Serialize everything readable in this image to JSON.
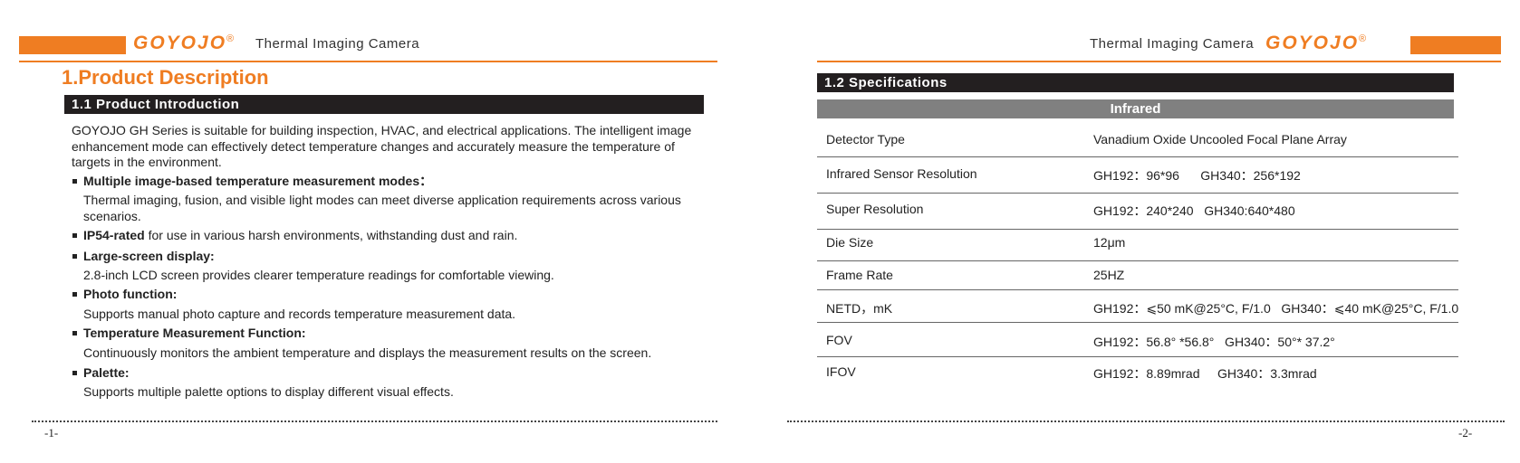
{
  "left": {
    "header": {
      "brand": "GOYOJO",
      "registered": "®",
      "title": "Thermal Imaging Camera"
    },
    "heading": "1.Product Description",
    "section": "1.1 Product Introduction",
    "intro": "GOYOJO GH Series is suitable for building inspection, HVAC, and electrical applications. The intelligent image enhancement mode can effectively detect temperature changes and accurately measure the temperature of targets in the environment.",
    "features": [
      {
        "title": "Multiple image-based temperature measurement modes：",
        "text": "Thermal imaging, fusion, and visible light modes can meet diverse application requirements across various scenarios."
      },
      {
        "title": "IP54-rated",
        "tail": " for use in various harsh environments, withstanding dust and rain."
      },
      {
        "title": "Large-screen display:",
        "text": "2.8-inch LCD screen provides clearer temperature readings for comfortable viewing."
      },
      {
        "title": "Photo function:",
        "text": "Supports manual photo capture and records temperature measurement data."
      },
      {
        "title": "Temperature Measurement Function:",
        "text": "Continuously monitors the ambient temperature and displays the measurement results on the screen."
      },
      {
        "title": "Palette:",
        "text": "Supports multiple palette options to display different visual effects."
      }
    ],
    "page_number": "-1-"
  },
  "right": {
    "header": {
      "brand": "GOYOJO",
      "registered": "®",
      "title": "Thermal Imaging Camera"
    },
    "section": "1.2 Specifications",
    "table": {
      "group": "Infrared",
      "rows": [
        [
          "Detector Type",
          "Vanadium Oxide Uncooled Focal Plane Array"
        ],
        [
          "Infrared Sensor Resolution",
          "GH192：96*96      GH340：256*192"
        ],
        [
          "Super Resolution",
          "GH192：240*240   GH340:640*480"
        ],
        [
          "Die Size",
          "12μm"
        ],
        [
          "Frame Rate",
          "25HZ"
        ],
        [
          "NETD，mK",
          "GH192：⩽50 mK@25°C, F/1.0   GH340：⩽40 mK@25°C, F/1.0"
        ],
        [
          "FOV",
          "GH192：56.8° *56.8°   GH340：50°* 37.2°"
        ],
        [
          "IFOV",
          "GH192：8.89mrad     GH340：3.3mrad"
        ]
      ]
    },
    "page_number": "-2-"
  }
}
